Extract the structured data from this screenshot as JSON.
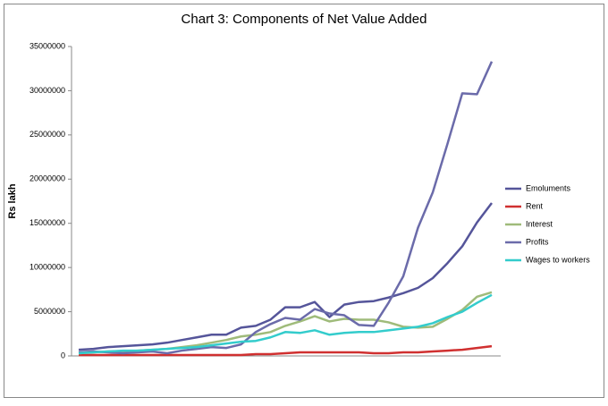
{
  "chart_data": {
    "type": "line",
    "title": "Chart 3: Components of Net Value Added",
    "y_label": "Rs lakh",
    "categories": [
      null,
      null,
      null,
      null,
      null,
      null,
      null,
      null,
      null,
      null,
      null,
      null,
      null,
      null,
      null,
      null,
      null,
      null,
      null,
      null,
      null,
      null,
      null,
      null,
      null,
      null,
      null,
      null,
      null
    ],
    "ylim": [
      0,
      35000000
    ],
    "yticks": [
      0,
      5000000,
      10000000,
      15000000,
      20000000,
      25000000,
      30000000,
      35000000
    ],
    "grid": false,
    "legend": "right",
    "series": [
      {
        "name": "Emoluments",
        "color": "#55559a",
        "values": [
          700000,
          800000,
          1000000,
          1100000,
          1200000,
          1300000,
          1500000,
          1800000,
          2100000,
          2400000,
          2400000,
          3200000,
          3400000,
          4100000,
          5500000,
          5500000,
          6100000,
          4400000,
          5800000,
          6100000,
          6200000,
          6600000,
          7100000,
          7700000,
          8800000,
          10500000,
          12400000,
          15100000,
          17300000
        ]
      },
      {
        "name": "Rent",
        "color": "#d03030",
        "values": [
          100000,
          100000,
          100000,
          100000,
          100000,
          100000,
          100000,
          100000,
          100000,
          100000,
          100000,
          100000,
          200000,
          200000,
          300000,
          400000,
          400000,
          400000,
          400000,
          400000,
          300000,
          300000,
          400000,
          400000,
          500000,
          600000,
          700000,
          900000,
          1100000
        ]
      },
      {
        "name": "Interest",
        "color": "#9fbb7a",
        "values": [
          300000,
          400000,
          500000,
          500000,
          600000,
          700000,
          800000,
          1000000,
          1200000,
          1500000,
          1800000,
          2200000,
          2400000,
          2700000,
          3400000,
          3900000,
          4500000,
          3900000,
          4200000,
          4100000,
          4100000,
          3800000,
          3300000,
          3200000,
          3300000,
          4200000,
          5200000,
          6700000,
          7200000
        ]
      },
      {
        "name": "Profits",
        "color": "#6b6baa",
        "values": [
          400000,
          500000,
          400000,
          300000,
          400000,
          500000,
          300000,
          600000,
          800000,
          1000000,
          900000,
          1300000,
          2700000,
          3600000,
          4300000,
          4100000,
          5300000,
          4800000,
          4600000,
          3500000,
          3400000,
          6000000,
          9000000,
          14500000,
          18500000,
          24000000,
          29700000,
          29600000,
          33300000
        ]
      },
      {
        "name": "Wages to workers",
        "color": "#33cccc",
        "values": [
          300000,
          400000,
          500000,
          600000,
          600000,
          700000,
          800000,
          900000,
          1000000,
          1200000,
          1400000,
          1600000,
          1700000,
          2100000,
          2700000,
          2600000,
          2900000,
          2400000,
          2600000,
          2700000,
          2700000,
          2900000,
          3100000,
          3300000,
          3700000,
          4400000,
          5000000,
          6000000,
          6900000
        ]
      }
    ]
  }
}
